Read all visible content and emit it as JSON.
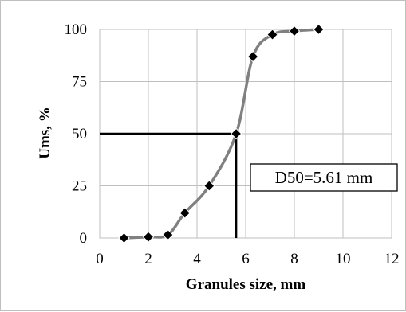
{
  "chart_data": {
    "type": "scatter",
    "xlabel": "Granules size, mm",
    "ylabel": "Ums, %",
    "xlim": [
      0,
      12
    ],
    "ylim": [
      0,
      100
    ],
    "x_ticks": [
      "0",
      "2",
      "4",
      "6",
      "8",
      "10",
      "12"
    ],
    "y_ticks": [
      "0",
      "25",
      "50",
      "75",
      "100"
    ],
    "grid": true,
    "series": [
      {
        "x": [
          1,
          2,
          2.8,
          3.5,
          4.5,
          5.61,
          6.3,
          7.1,
          8,
          9
        ],
        "y": [
          0,
          0.5,
          1.5,
          12,
          25,
          50,
          87,
          97.5,
          99.2,
          100
        ],
        "line_color": "#808080",
        "marker": "diamond",
        "marker_color": "#000000"
      }
    ],
    "reference_lines": {
      "x": 5.61,
      "y": 50
    },
    "annotation": {
      "text": "D50=5.61 mm"
    }
  }
}
